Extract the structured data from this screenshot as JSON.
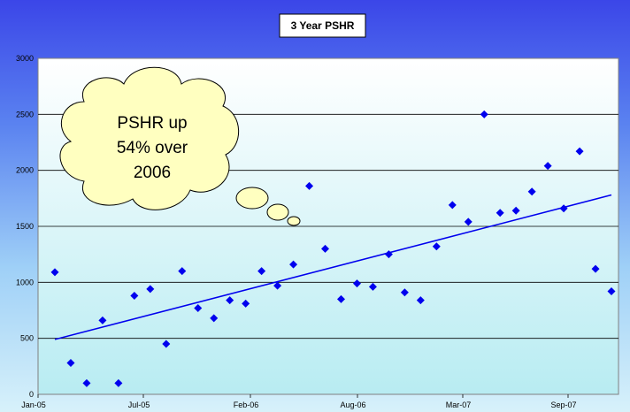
{
  "chart_data": {
    "type": "scatter",
    "title": "3 Year PSHR",
    "xlabel": "",
    "ylabel": "",
    "ylim": [
      0,
      3000
    ],
    "yticks": [
      0,
      500,
      1000,
      1500,
      2000,
      2500,
      3000
    ],
    "xticks": [
      "Jan-05",
      "Jul-05",
      "Feb-06",
      "Aug-06",
      "Mar-07",
      "Sep-07"
    ],
    "grid": true,
    "legend": "none",
    "marker_color": "#0000ee",
    "trendline_color": "#0000ee",
    "series": [
      {
        "x": [
          "2005-01",
          "2005-02",
          "2005-03",
          "2005-04",
          "2005-05",
          "2005-06",
          "2005-07",
          "2005-08",
          "2005-09",
          "2005-10",
          "2005-11",
          "2005-12",
          "2006-01",
          "2006-02",
          "2006-03",
          "2006-04",
          "2006-05",
          "2006-06",
          "2006-07",
          "2006-08",
          "2006-09",
          "2006-10",
          "2006-11",
          "2006-12",
          "2007-01",
          "2007-02",
          "2007-03",
          "2007-04",
          "2007-05",
          "2007-06",
          "2007-07",
          "2007-08",
          "2007-09",
          "2007-10",
          "2007-11",
          "2007-12"
        ],
        "y": [
          1090,
          280,
          100,
          660,
          100,
          880,
          940,
          450,
          1100,
          770,
          680,
          840,
          810,
          1100,
          970,
          1160,
          1860,
          1300,
          850,
          990,
          960,
          1250,
          910,
          840,
          1320,
          1690,
          1540,
          2500,
          1620,
          1640,
          1810,
          2040,
          1660,
          2170,
          1120,
          920
        ]
      }
    ],
    "trendline": {
      "x": [
        "2005-01",
        "2007-12"
      ],
      "y": [
        490,
        1780
      ]
    },
    "annotation": {
      "text_lines": [
        "PSHR up",
        "54% over",
        "2006"
      ],
      "fill": "#ffffc0"
    }
  }
}
